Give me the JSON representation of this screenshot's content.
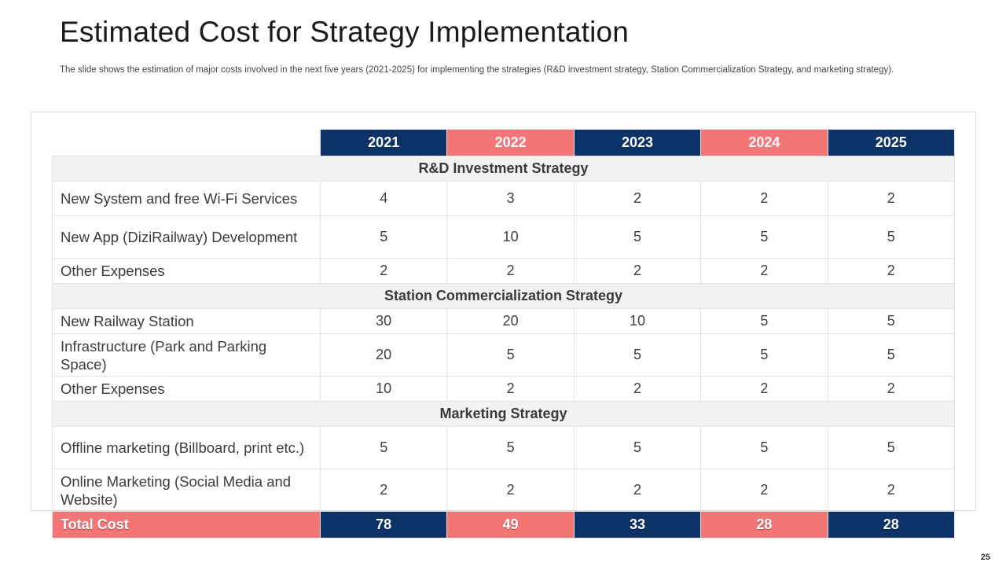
{
  "slide": {
    "title": "Estimated Cost for Strategy Implementation",
    "subtitle": "The slide shows the estimation of major costs involved in the next five years  (2021-2025)  for implementing the strategies (R&D investment strategy, Station Commercialization Strategy, and marketing strategy).",
    "page_number": "25"
  },
  "table": {
    "years": [
      "2021",
      "2022",
      "2023",
      "2024",
      "2025"
    ],
    "sections": [
      {
        "title": "R&D Investment Strategy",
        "rows": [
          {
            "label": "New System and free Wi-Fi Services",
            "values": [
              "4",
              "3",
              "2",
              "2",
              "2"
            ]
          },
          {
            "label": "New App (DiziRailway) Development",
            "values": [
              "5",
              "10",
              "5",
              "5",
              "5"
            ]
          },
          {
            "label": "Other Expenses",
            "values": [
              "2",
              "2",
              "2",
              "2",
              "2"
            ]
          }
        ]
      },
      {
        "title": "Station Commercialization Strategy",
        "rows": [
          {
            "label": "New Railway Station",
            "values": [
              "30",
              "20",
              "10",
              "5",
              "5"
            ]
          },
          {
            "label": "Infrastructure (Park and Parking Space)",
            "values": [
              "20",
              "5",
              "5",
              "5",
              "5"
            ]
          },
          {
            "label": "Other Expenses",
            "values": [
              "10",
              "2",
              "2",
              "2",
              "2"
            ]
          }
        ]
      },
      {
        "title": "Marketing Strategy",
        "rows": [
          {
            "label": "Offline marketing (Billboard, print etc.)",
            "values": [
              "5",
              "5",
              "5",
              "5",
              "5"
            ]
          },
          {
            "label": "Online Marketing (Social Media and Website)",
            "values": [
              "2",
              "2",
              "2",
              "2",
              "2"
            ]
          }
        ]
      }
    ],
    "total": {
      "label": "Total Cost",
      "values": [
        "78",
        "49",
        "33",
        "28",
        "28"
      ]
    }
  },
  "colors": {
    "navy": "#0d3268",
    "coral": "#f47575",
    "section_bg": "#f2f2f2"
  }
}
